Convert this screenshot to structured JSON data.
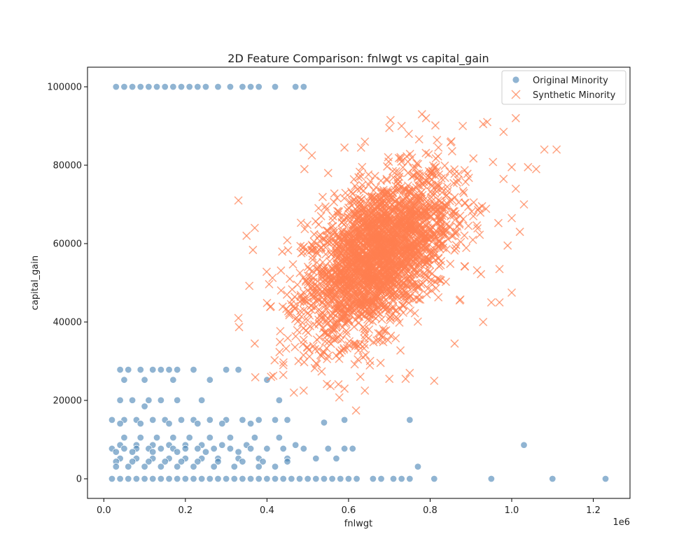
{
  "chart_data": {
    "type": "scatter",
    "title": "2D Feature Comparison: fnlwgt vs capital_gain",
    "xlabel": "fnlwgt",
    "ylabel": "capital_gain",
    "x_offset_text": "1e6",
    "xlim": [
      -0.04,
      1.29
    ],
    "ylim": [
      -5000,
      105000
    ],
    "x_tick_labels": [
      "0.0",
      "0.2",
      "0.4",
      "0.6",
      "0.8",
      "1.0",
      "1.2"
    ],
    "y_tick_labels": [
      "0",
      "20000",
      "40000",
      "60000",
      "80000",
      "100000"
    ],
    "x_ticks": [
      0.0,
      0.2,
      0.4,
      0.6,
      0.8,
      1.0,
      1.2
    ],
    "y_ticks": [
      0,
      20000,
      40000,
      60000,
      80000,
      100000
    ],
    "grid": false,
    "legend_position": "top-right",
    "series": [
      {
        "name": "Original Minority",
        "marker": "circle",
        "color": "#4682b4",
        "points": [
          [
            0.03,
            99999
          ],
          [
            0.05,
            99999
          ],
          [
            0.07,
            99999
          ],
          [
            0.09,
            99999
          ],
          [
            0.11,
            99999
          ],
          [
            0.13,
            99999
          ],
          [
            0.15,
            99999
          ],
          [
            0.17,
            99999
          ],
          [
            0.19,
            99999
          ],
          [
            0.21,
            99999
          ],
          [
            0.23,
            99999
          ],
          [
            0.25,
            99999
          ],
          [
            0.28,
            99999
          ],
          [
            0.31,
            99999
          ],
          [
            0.34,
            99999
          ],
          [
            0.36,
            99999
          ],
          [
            0.38,
            99999
          ],
          [
            0.42,
            99999
          ],
          [
            0.47,
            99999
          ],
          [
            0.49,
            99999
          ],
          [
            0.04,
            27828
          ],
          [
            0.06,
            27828
          ],
          [
            0.09,
            27828
          ],
          [
            0.12,
            27828
          ],
          [
            0.14,
            27828
          ],
          [
            0.16,
            27828
          ],
          [
            0.18,
            27828
          ],
          [
            0.22,
            27828
          ],
          [
            0.3,
            27828
          ],
          [
            0.33,
            27828
          ],
          [
            0.05,
            25236
          ],
          [
            0.1,
            25236
          ],
          [
            0.17,
            25236
          ],
          [
            0.26,
            25236
          ],
          [
            0.4,
            25236
          ],
          [
            0.04,
            20051
          ],
          [
            0.07,
            20051
          ],
          [
            0.11,
            20051
          ],
          [
            0.14,
            20051
          ],
          [
            0.18,
            20051
          ],
          [
            0.24,
            20051
          ],
          [
            0.43,
            20051
          ],
          [
            0.1,
            18481
          ],
          [
            0.02,
            15024
          ],
          [
            0.05,
            15024
          ],
          [
            0.08,
            15024
          ],
          [
            0.12,
            15024
          ],
          [
            0.15,
            15024
          ],
          [
            0.19,
            15024
          ],
          [
            0.22,
            15024
          ],
          [
            0.26,
            15024
          ],
          [
            0.3,
            15024
          ],
          [
            0.34,
            15024
          ],
          [
            0.38,
            15024
          ],
          [
            0.42,
            15024
          ],
          [
            0.45,
            15024
          ],
          [
            0.54,
            14344
          ],
          [
            0.59,
            15024
          ],
          [
            0.75,
            15024
          ],
          [
            0.04,
            14084
          ],
          [
            0.09,
            14084
          ],
          [
            0.16,
            14084
          ],
          [
            0.23,
            14084
          ],
          [
            0.29,
            14084
          ],
          [
            0.36,
            14084
          ],
          [
            0.05,
            10520
          ],
          [
            0.09,
            10520
          ],
          [
            0.13,
            10520
          ],
          [
            0.17,
            10520
          ],
          [
            0.21,
            10520
          ],
          [
            0.26,
            10520
          ],
          [
            0.31,
            10520
          ],
          [
            0.37,
            10520
          ],
          [
            0.43,
            10520
          ],
          [
            0.04,
            8614
          ],
          [
            0.08,
            8614
          ],
          [
            0.12,
            8614
          ],
          [
            0.16,
            8614
          ],
          [
            0.2,
            8614
          ],
          [
            0.24,
            8614
          ],
          [
            0.29,
            8614
          ],
          [
            0.35,
            8614
          ],
          [
            0.47,
            8614
          ],
          [
            1.03,
            8614
          ],
          [
            0.02,
            7688
          ],
          [
            0.05,
            7688
          ],
          [
            0.08,
            7688
          ],
          [
            0.11,
            7688
          ],
          [
            0.14,
            7688
          ],
          [
            0.17,
            7688
          ],
          [
            0.2,
            7688
          ],
          [
            0.23,
            7688
          ],
          [
            0.27,
            7688
          ],
          [
            0.31,
            7688
          ],
          [
            0.36,
            7688
          ],
          [
            0.4,
            7688
          ],
          [
            0.44,
            7688
          ],
          [
            0.49,
            7688
          ],
          [
            0.55,
            7688
          ],
          [
            0.59,
            7688
          ],
          [
            0.61,
            7688
          ],
          [
            0.03,
            6849
          ],
          [
            0.07,
            6849
          ],
          [
            0.12,
            6849
          ],
          [
            0.18,
            6849
          ],
          [
            0.25,
            6849
          ],
          [
            0.33,
            6849
          ],
          [
            0.04,
            5178
          ],
          [
            0.08,
            5178
          ],
          [
            0.12,
            5178
          ],
          [
            0.16,
            5178
          ],
          [
            0.2,
            5178
          ],
          [
            0.24,
            5178
          ],
          [
            0.28,
            5178
          ],
          [
            0.33,
            5178
          ],
          [
            0.38,
            5178
          ],
          [
            0.45,
            5178
          ],
          [
            0.52,
            5178
          ],
          [
            0.57,
            5178
          ],
          [
            0.03,
            4386
          ],
          [
            0.07,
            4386
          ],
          [
            0.11,
            4386
          ],
          [
            0.15,
            4386
          ],
          [
            0.19,
            4386
          ],
          [
            0.23,
            4386
          ],
          [
            0.28,
            4386
          ],
          [
            0.34,
            4386
          ],
          [
            0.39,
            4386
          ],
          [
            0.45,
            4386
          ],
          [
            0.03,
            3103
          ],
          [
            0.06,
            3103
          ],
          [
            0.1,
            3103
          ],
          [
            0.14,
            3103
          ],
          [
            0.18,
            3103
          ],
          [
            0.22,
            3103
          ],
          [
            0.27,
            3103
          ],
          [
            0.32,
            3103
          ],
          [
            0.38,
            3103
          ],
          [
            0.42,
            3103
          ],
          [
            0.77,
            3103
          ],
          [
            0.02,
            0
          ],
          [
            0.04,
            0
          ],
          [
            0.06,
            0
          ],
          [
            0.08,
            0
          ],
          [
            0.1,
            0
          ],
          [
            0.12,
            0
          ],
          [
            0.14,
            0
          ],
          [
            0.16,
            0
          ],
          [
            0.18,
            0
          ],
          [
            0.2,
            0
          ],
          [
            0.22,
            0
          ],
          [
            0.24,
            0
          ],
          [
            0.26,
            0
          ],
          [
            0.28,
            0
          ],
          [
            0.3,
            0
          ],
          [
            0.32,
            0
          ],
          [
            0.34,
            0
          ],
          [
            0.36,
            0
          ],
          [
            0.38,
            0
          ],
          [
            0.4,
            0
          ],
          [
            0.42,
            0
          ],
          [
            0.44,
            0
          ],
          [
            0.46,
            0
          ],
          [
            0.48,
            0
          ],
          [
            0.5,
            0
          ],
          [
            0.52,
            0
          ],
          [
            0.54,
            0
          ],
          [
            0.56,
            0
          ],
          [
            0.58,
            0
          ],
          [
            0.6,
            0
          ],
          [
            0.62,
            0
          ],
          [
            0.66,
            0
          ],
          [
            0.68,
            0
          ],
          [
            0.71,
            0
          ],
          [
            0.73,
            0
          ],
          [
            0.75,
            0
          ],
          [
            0.81,
            0
          ],
          [
            0.95,
            0
          ],
          [
            1.1,
            0
          ],
          [
            1.23,
            0
          ]
        ]
      },
      {
        "name": "Synthetic Minority",
        "marker": "x",
        "color": "#ff7f50",
        "cloud": {
          "count": 2600,
          "mean_x": 0.67,
          "mean_y": 57000,
          "sd_x": 0.09,
          "sd_y": 10500,
          "correlation": 0.5
        },
        "points": [
          [
            0.33,
            71000
          ],
          [
            0.35,
            62000
          ],
          [
            0.37,
            64000
          ],
          [
            0.33,
            41000
          ],
          [
            0.37,
            34500
          ],
          [
            0.41,
            26000
          ],
          [
            0.44,
            26500
          ],
          [
            0.44,
            29000
          ],
          [
            0.49,
            22500
          ],
          [
            0.49,
            84500
          ],
          [
            0.51,
            82500
          ],
          [
            0.55,
            78000
          ],
          [
            0.59,
            23000
          ],
          [
            0.64,
            22500
          ],
          [
            0.7,
            25500
          ],
          [
            0.74,
            25500
          ],
          [
            0.75,
            27000
          ],
          [
            0.81,
            25000
          ],
          [
            0.86,
            34500
          ],
          [
            0.93,
            40000
          ],
          [
            0.95,
            45000
          ],
          [
            0.97,
            45000
          ],
          [
            1.0,
            47500
          ],
          [
            0.97,
            53500
          ],
          [
            0.99,
            59500
          ],
          [
            1.02,
            63000
          ],
          [
            1.0,
            66500
          ],
          [
            1.03,
            70000
          ],
          [
            1.04,
            79500
          ],
          [
            1.06,
            79000
          ],
          [
            1.08,
            84000
          ],
          [
            1.11,
            84000
          ],
          [
            1.01,
            92000
          ],
          [
            0.98,
            88500
          ],
          [
            0.93,
            90500
          ],
          [
            0.94,
            91000
          ],
          [
            0.88,
            90000
          ],
          [
            0.78,
            93000
          ],
          [
            0.79,
            92000
          ],
          [
            0.73,
            90000
          ],
          [
            0.7,
            89500
          ],
          [
            0.64,
            86000
          ],
          [
            0.59,
            84500
          ],
          [
            1.0,
            79500
          ],
          [
            1.01,
            74000
          ],
          [
            0.98,
            76500
          ]
        ]
      }
    ]
  }
}
